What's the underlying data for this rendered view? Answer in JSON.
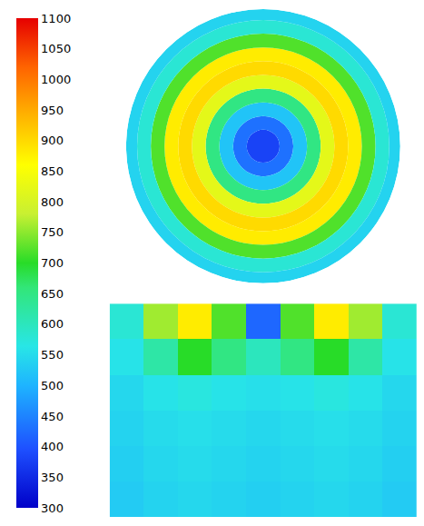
{
  "chart_data": {
    "type": "particle_tracks",
    "tick_labels": false,
    "colorbar": {
      "range": [
        300,
        1100
      ],
      "ticks": [
        300,
        350,
        400,
        450,
        500,
        550,
        600,
        650,
        700,
        750,
        800,
        850,
        900,
        950,
        1000,
        1050,
        1100
      ]
    },
    "top_view": {
      "type": "barpolar",
      "rlim": [
        0,
        1
      ],
      "ring_widths": [
        0.12,
        0.1,
        0.1,
        0.1,
        0.1,
        0.1,
        0.1,
        0.1,
        0.1,
        0.08
      ],
      "values": [
        380,
        430,
        520,
        650,
        820,
        900,
        880,
        720,
        580,
        540
      ]
    },
    "side_view": {
      "type": "heatmap",
      "cells": [
        [
          580,
          760,
          880,
          720,
          420,
          720,
          880,
          760,
          580
        ],
        [
          560,
          620,
          700,
          650,
          600,
          650,
          700,
          620,
          560
        ],
        [
          545,
          560,
          570,
          560,
          555,
          560,
          570,
          560,
          545
        ],
        [
          540,
          550,
          555,
          550,
          545,
          550,
          555,
          550,
          540
        ],
        [
          535,
          545,
          550,
          545,
          540,
          545,
          550,
          545,
          535
        ],
        [
          530,
          540,
          545,
          540,
          535,
          540,
          545,
          540,
          530
        ]
      ]
    }
  }
}
